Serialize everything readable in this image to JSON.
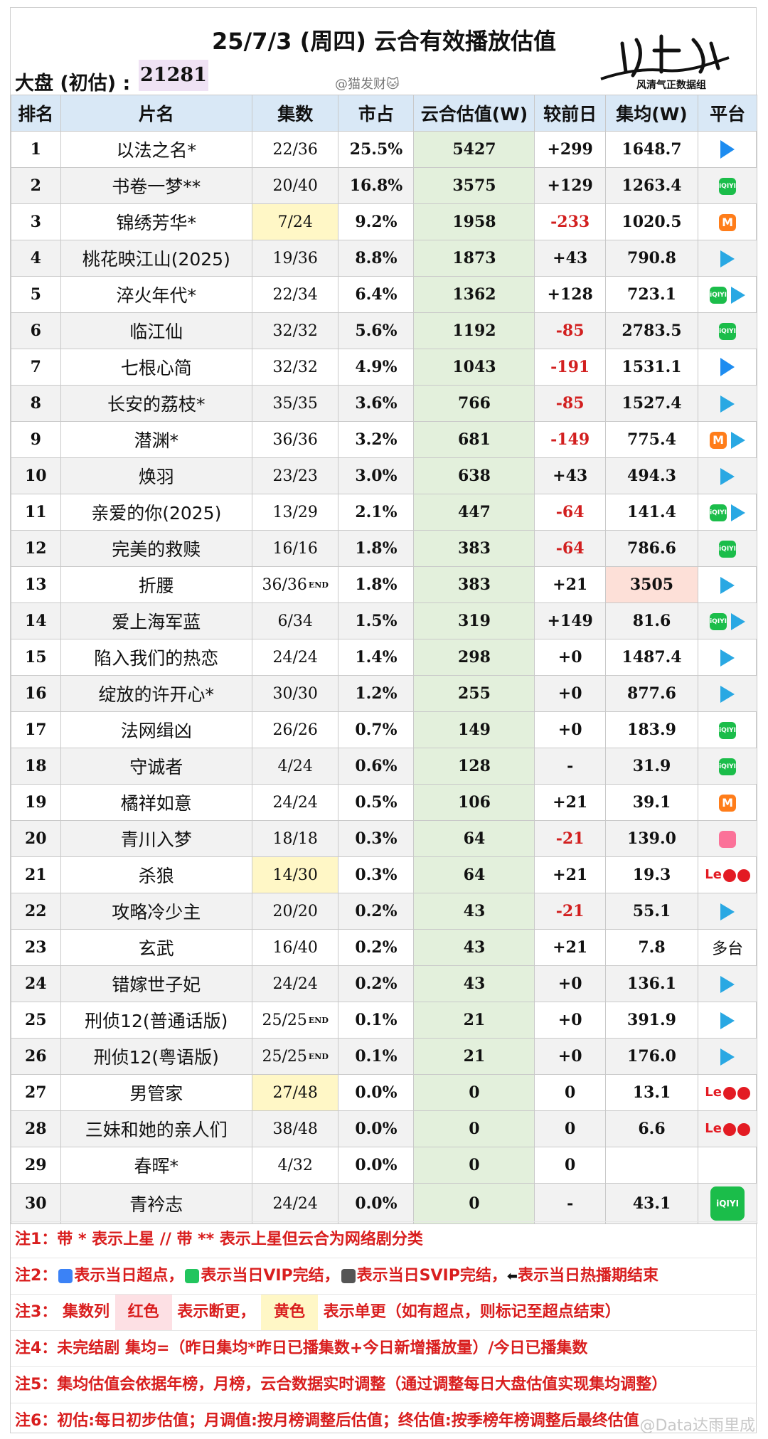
{
  "header": {
    "title": "25/7/3 (周四) 云合有效播放估值",
    "market_label": "大盘 (初估) :",
    "market_value": "21281",
    "weibo": "@猫发财🐱",
    "logo_text": "风清气正数据组"
  },
  "table": {
    "columns": [
      "排名",
      "片名",
      "集数",
      "市占",
      "云合估值(W)",
      "较前日",
      "集均(W)",
      "平台"
    ],
    "rows": [
      {
        "rank": "1",
        "name": "以法之名*",
        "ep": "22/36",
        "share": "25.5%",
        "est": "5427",
        "diff": "+299",
        "avg": "1648.7"
      },
      {
        "rank": "2",
        "name": "书卷一梦**",
        "ep": "20/40",
        "share": "16.8%",
        "est": "3575",
        "diff": "+129",
        "avg": "1263.4"
      },
      {
        "rank": "3",
        "name": "锦绣芳华*",
        "ep": "7/24",
        "share": "9.2%",
        "est": "1958",
        "diff": "-233",
        "avg": "1020.5"
      },
      {
        "rank": "4",
        "name": "桃花映江山(2025)",
        "ep": "19/36",
        "share": "8.8%",
        "est": "1873",
        "diff": "+43",
        "avg": "790.8"
      },
      {
        "rank": "5",
        "name": "淬火年代*",
        "ep": "22/34",
        "share": "6.4%",
        "est": "1362",
        "diff": "+128",
        "avg": "723.1"
      },
      {
        "rank": "6",
        "name": "临江仙",
        "ep": "32/32",
        "share": "5.6%",
        "est": "1192",
        "diff": "-85",
        "avg": "2783.5"
      },
      {
        "rank": "7",
        "name": "七根心简",
        "ep": "32/32",
        "share": "4.9%",
        "est": "1043",
        "diff": "-191",
        "avg": "1531.1"
      },
      {
        "rank": "8",
        "name": "长安的荔枝*",
        "ep": "35/35",
        "share": "3.6%",
        "est": "766",
        "diff": "-85",
        "avg": "1527.4"
      },
      {
        "rank": "9",
        "name": "潜渊*",
        "ep": "36/36",
        "share": "3.2%",
        "est": "681",
        "diff": "-149",
        "avg": "775.4"
      },
      {
        "rank": "10",
        "name": "焕羽",
        "ep": "23/23",
        "share": "3.0%",
        "est": "638",
        "diff": "+43",
        "avg": "494.3"
      },
      {
        "rank": "11",
        "name": "亲爱的你(2025)",
        "ep": "13/29",
        "share": "2.1%",
        "est": "447",
        "diff": "-64",
        "avg": "141.4"
      },
      {
        "rank": "12",
        "name": "完美的救赎",
        "ep": "16/16",
        "share": "1.8%",
        "est": "383",
        "diff": "-64",
        "avg": "786.6"
      },
      {
        "rank": "13",
        "name": "折腰",
        "ep": "36/36",
        "share": "1.8%",
        "est": "383",
        "diff": "+21",
        "avg": "3505"
      },
      {
        "rank": "14",
        "name": "爱上海军蓝",
        "ep": "6/34",
        "share": "1.5%",
        "est": "319",
        "diff": "+149",
        "avg": "81.6"
      },
      {
        "rank": "15",
        "name": "陷入我们的热恋",
        "ep": "24/24",
        "share": "1.4%",
        "est": "298",
        "diff": "+0",
        "avg": "1487.4"
      },
      {
        "rank": "16",
        "name": "绽放的许开心*",
        "ep": "30/30",
        "share": "1.2%",
        "est": "255",
        "diff": "+0",
        "avg": "877.6"
      },
      {
        "rank": "17",
        "name": "法网缉凶",
        "ep": "26/26",
        "share": "0.7%",
        "est": "149",
        "diff": "+0",
        "avg": "183.9"
      },
      {
        "rank": "18",
        "name": "守诚者",
        "ep": "4/24",
        "share": "0.6%",
        "est": "128",
        "diff": "-",
        "avg": "31.9"
      },
      {
        "rank": "19",
        "name": "橘祥如意",
        "ep": "24/24",
        "share": "0.5%",
        "est": "106",
        "diff": "+21",
        "avg": "39.1"
      },
      {
        "rank": "20",
        "name": "青川入梦",
        "ep": "18/18",
        "share": "0.3%",
        "est": "64",
        "diff": "-21",
        "avg": "139.0"
      },
      {
        "rank": "21",
        "name": "杀狼",
        "ep": "14/30",
        "share": "0.3%",
        "est": "64",
        "diff": "+21",
        "avg": "19.3"
      },
      {
        "rank": "22",
        "name": "攻略冷少主",
        "ep": "20/20",
        "share": "0.2%",
        "est": "43",
        "diff": "-21",
        "avg": "55.1"
      },
      {
        "rank": "23",
        "name": "玄武",
        "ep": "16/40",
        "share": "0.2%",
        "est": "43",
        "diff": "+21",
        "avg": "7.8"
      },
      {
        "rank": "24",
        "name": "错嫁世子妃",
        "ep": "24/24",
        "share": "0.2%",
        "est": "43",
        "diff": "+0",
        "avg": "136.1"
      },
      {
        "rank": "25",
        "name": "刑侦12(普通话版)",
        "ep": "25/25",
        "share": "0.1%",
        "est": "21",
        "diff": "+0",
        "avg": "391.9"
      },
      {
        "rank": "26",
        "name": "刑侦12(粤语版)",
        "ep": "25/25",
        "share": "0.1%",
        "est": "21",
        "diff": "+0",
        "avg": "176.0"
      },
      {
        "rank": "27",
        "name": "男管家",
        "ep": "27/48",
        "share": "0.0%",
        "est": "0",
        "diff": "0",
        "avg": "13.1"
      },
      {
        "rank": "28",
        "name": "三妹和她的亲人们",
        "ep": "38/48",
        "share": "0.0%",
        "est": "0",
        "diff": "0",
        "avg": "6.6"
      },
      {
        "rank": "29",
        "name": "春晖*",
        "ep": "4/32",
        "share": "0.0%",
        "est": "0",
        "diff": "0",
        "avg": ""
      },
      {
        "rank": "30",
        "name": "青衿志",
        "ep": "24/24",
        "share": "0.0%",
        "est": "0",
        "diff": "-",
        "avg": "43.1"
      }
    ],
    "end_mark": "END",
    "iqiyi_text": "iQIYI",
    "le_text": "Le",
    "mango_text": "M",
    "multi_platform": "多台"
  },
  "notes": {
    "n1": "注1：带 * 表示上星 // 带 ** 表示上星但云合为网络剧分类",
    "n2a": "注2：",
    "n2b": "表示当日超点，",
    "n2c": "表示当日VIP完结，",
    "n2d": "表示当日SVIP完结，",
    "n2e": "表示当日热播期结束",
    "n3a": "注3：  集数列",
    "n3b": "红色",
    "n3c": "表示断更，",
    "n3d": "黄色",
    "n3e": "表示单更（如有超点，则标记至超点结束）",
    "n4": "注4：未完结剧 集均=（昨日集均*昨日已播集数+今日新增播放量）/今日已播集数",
    "n5": "注5：集均估值会依据年榜，月榜，云合数据实时调整（通过调整每日大盘估值实现集均调整）",
    "n6": "注6：初估:每日初步估值；月调值:按月榜调整后估值；终估值:按季榜年榜调整后最终估值",
    "watermark": "@Data达雨里成"
  },
  "colors": {
    "header_bg": "#d9e8f6",
    "estimate_bg": "#e3f0dc",
    "negative": "#d21f1f",
    "note": "#d91e1e",
    "yellow_chip": "#fff7c6",
    "red_chip": "#fde0e4",
    "market_bg": "#efe2f4"
  }
}
